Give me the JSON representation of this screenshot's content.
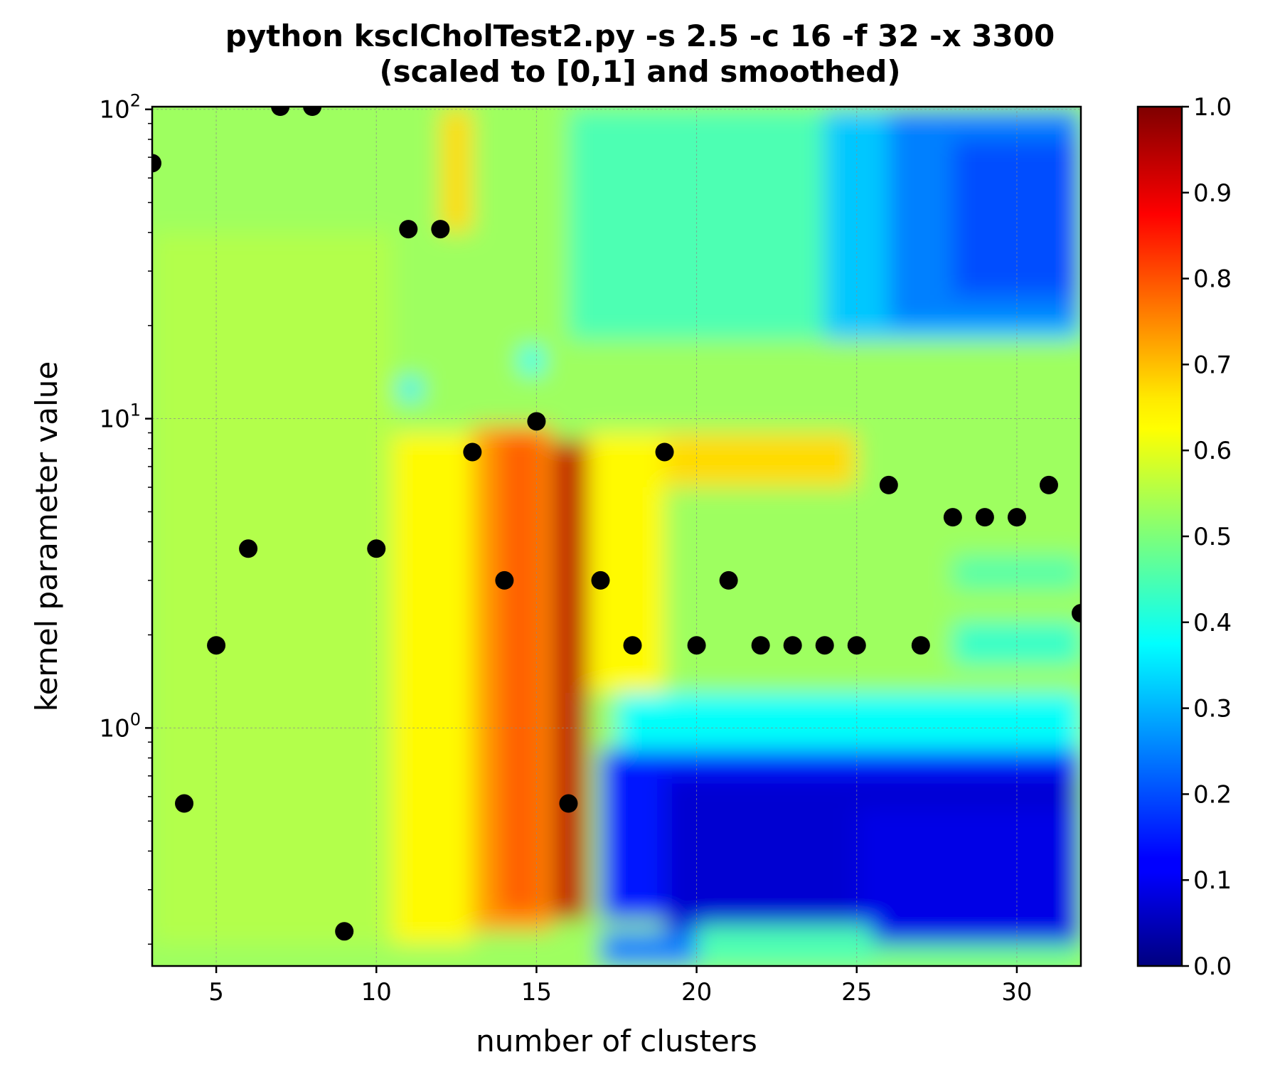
{
  "chart_data": {
    "type": "heatmap",
    "title": "python ksclCholTest2.py -s 2.5 -c 16 -f 32 -x 3300",
    "subtitle": "(scaled to [0,1] and smoothed)",
    "xlabel": "number of clusters",
    "ylabel": "kernel parameter value",
    "xlim": [
      3,
      32
    ],
    "ylim": [
      0.17,
      102
    ],
    "yscale": "log",
    "x_ticks": [
      5,
      10,
      15,
      20,
      25,
      30
    ],
    "y_ticks": [
      {
        "value": 1,
        "label_base": "10",
        "label_exp": "0"
      },
      {
        "value": 10,
        "label_base": "10",
        "label_exp": "1"
      },
      {
        "value": 100,
        "label_base": "10",
        "label_exp": "2"
      }
    ],
    "grid": true,
    "colormap": "jet",
    "colorbar": {
      "min": 0.0,
      "max": 1.0,
      "ticks": [
        "0.0",
        "0.1",
        "0.2",
        "0.3",
        "0.4",
        "0.5",
        "0.6",
        "0.7",
        "0.8",
        "0.9",
        "1.0"
      ]
    },
    "field_regions": [
      {
        "x": [
          3,
          32
        ],
        "y": [
          0.17,
          102
        ],
        "value": 0.53
      },
      {
        "x": [
          3,
          10.5
        ],
        "y": [
          0.2,
          40
        ],
        "value": 0.55
      },
      {
        "x": [
          10.5,
          13
        ],
        "y": [
          0.2,
          9
        ],
        "value": 0.63
      },
      {
        "x": [
          13,
          15.5
        ],
        "y": [
          0.22,
          9.5
        ],
        "value": 0.72
      },
      {
        "x": [
          13.8,
          15.2
        ],
        "y": [
          0.25,
          9
        ],
        "value": 0.78
      },
      {
        "x": [
          15.5,
          16.6
        ],
        "y": [
          0.24,
          8.5
        ],
        "value": 0.94
      },
      {
        "x": [
          16.6,
          19
        ],
        "y": [
          1.3,
          9
        ],
        "value": 0.63
      },
      {
        "x": [
          19,
          25
        ],
        "y": [
          6,
          9
        ],
        "value": 0.66
      },
      {
        "x": [
          12,
          13
        ],
        "y": [
          40,
          100
        ],
        "value": 0.66
      },
      {
        "x": [
          17.5,
          32
        ],
        "y": [
          0.85,
          1.3
        ],
        "value": 0.38
      },
      {
        "x": [
          17,
          32
        ],
        "y": [
          0.24,
          0.85
        ],
        "value": 0.15
      },
      {
        "x": [
          19,
          32
        ],
        "y": [
          0.2,
          0.7
        ],
        "value": 0.08
      },
      {
        "x": [
          25,
          32
        ],
        "y": [
          0.2,
          0.55
        ],
        "value": 0.1
      },
      {
        "x": [
          20,
          25.5
        ],
        "y": [
          0.17,
          0.23
        ],
        "value": 0.45
      },
      {
        "x": [
          25.5,
          32
        ],
        "y": [
          0.17,
          0.2
        ],
        "value": 0.48
      },
      {
        "x": [
          17,
          20
        ],
        "y": [
          0.17,
          0.22
        ],
        "value": 0.25
      },
      {
        "x": [
          20,
          32
        ],
        "y": [
          18,
          100
        ],
        "value": 0.32
      },
      {
        "x": [
          26,
          32
        ],
        "y": [
          20,
          100
        ],
        "value": 0.25
      },
      {
        "x": [
          28,
          32
        ],
        "y": [
          25,
          80
        ],
        "value": 0.2
      },
      {
        "x": [
          16,
          24
        ],
        "y": [
          18,
          100
        ],
        "value": 0.45
      },
      {
        "x": [
          14.5,
          15.2
        ],
        "y": [
          14,
          17
        ],
        "value": 0.38
      },
      {
        "x": [
          10.7,
          11.4
        ],
        "y": [
          11.5,
          13.5
        ],
        "value": 0.36
      },
      {
        "x": [
          28,
          32
        ],
        "y": [
          1.6,
          2.2
        ],
        "value": 0.43
      },
      {
        "x": [
          28,
          32
        ],
        "y": [
          2.8,
          3.6
        ],
        "value": 0.46
      }
    ],
    "points": [
      {
        "x": 3,
        "y": 67
      },
      {
        "x": 4,
        "y": 0.57
      },
      {
        "x": 5,
        "y": 1.85
      },
      {
        "x": 6,
        "y": 3.8
      },
      {
        "x": 7,
        "y": 102
      },
      {
        "x": 8,
        "y": 102
      },
      {
        "x": 9,
        "y": 0.22
      },
      {
        "x": 10,
        "y": 3.8
      },
      {
        "x": 11,
        "y": 41
      },
      {
        "x": 12,
        "y": 41
      },
      {
        "x": 13,
        "y": 7.8
      },
      {
        "x": 14,
        "y": 3.0
      },
      {
        "x": 15,
        "y": 9.8
      },
      {
        "x": 16,
        "y": 0.57
      },
      {
        "x": 17,
        "y": 3.0
      },
      {
        "x": 18,
        "y": 1.85
      },
      {
        "x": 19,
        "y": 7.8
      },
      {
        "x": 20,
        "y": 1.85
      },
      {
        "x": 21,
        "y": 3.0
      },
      {
        "x": 22,
        "y": 1.85
      },
      {
        "x": 23,
        "y": 1.85
      },
      {
        "x": 24,
        "y": 1.85
      },
      {
        "x": 25,
        "y": 1.85
      },
      {
        "x": 26,
        "y": 6.1
      },
      {
        "x": 27,
        "y": 1.85
      },
      {
        "x": 28,
        "y": 4.8
      },
      {
        "x": 29,
        "y": 4.8
      },
      {
        "x": 30,
        "y": 4.8
      },
      {
        "x": 31,
        "y": 6.1
      },
      {
        "x": 32,
        "y": 2.35
      }
    ]
  }
}
